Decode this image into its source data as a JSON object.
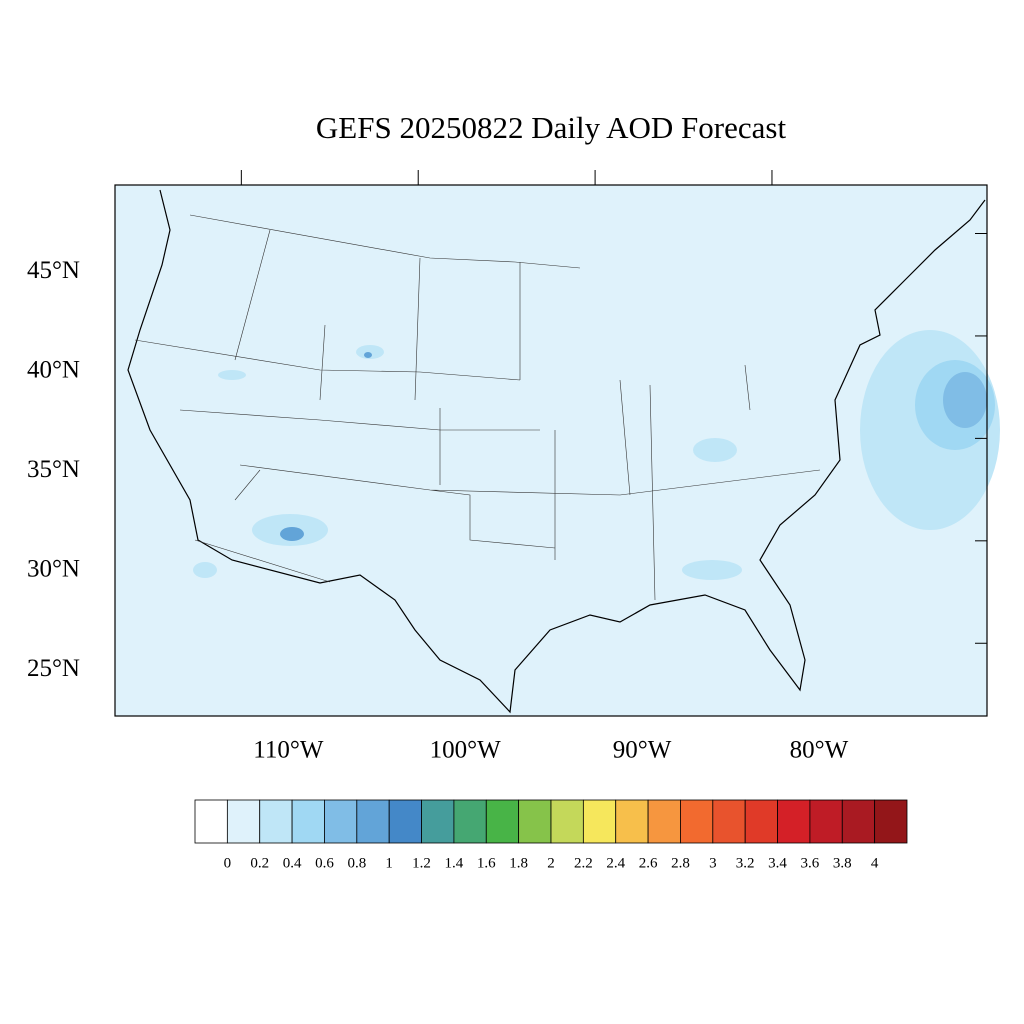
{
  "title": "GEFS 20250822 Daily AOD Forecast",
  "map": {
    "xlim": [
      -119.8,
      -70.5
    ],
    "ylim": [
      22.7,
      49.4
    ],
    "lat_labels": [
      {
        "value": 45,
        "label": "45°N"
      },
      {
        "value": 40,
        "label": "40°N"
      },
      {
        "value": 35,
        "label": "35°N"
      },
      {
        "value": 30,
        "label": "30°N"
      },
      {
        "value": 25,
        "label": "25°N"
      }
    ],
    "lon_labels": [
      {
        "value": -110,
        "label": "110°W"
      },
      {
        "value": -100,
        "label": "100°W"
      },
      {
        "value": -90,
        "label": "90°W"
      },
      {
        "value": -80,
        "label": "80°W"
      }
    ]
  },
  "colorbar": {
    "levels": [
      0,
      0.2,
      0.4,
      0.6,
      0.8,
      1,
      1.2,
      1.4,
      1.6,
      1.8,
      2,
      2.2,
      2.4,
      2.6,
      2.8,
      3,
      3.2,
      3.4,
      3.6,
      3.8,
      4
    ],
    "colors": [
      "#ffffff",
      "#dff2fb",
      "#bfe6f7",
      "#a0d8f3",
      "#80bde6",
      "#62a4d8",
      "#4488c8",
      "#459d9c",
      "#45a772",
      "#48b447",
      "#86c34a",
      "#c4d85a",
      "#f6e75c",
      "#f7bf4b",
      "#f6963f",
      "#f26a2f",
      "#e8532d",
      "#e03a28",
      "#d42027",
      "#bf1c26",
      "#a91a22",
      "#931619"
    ]
  }
}
